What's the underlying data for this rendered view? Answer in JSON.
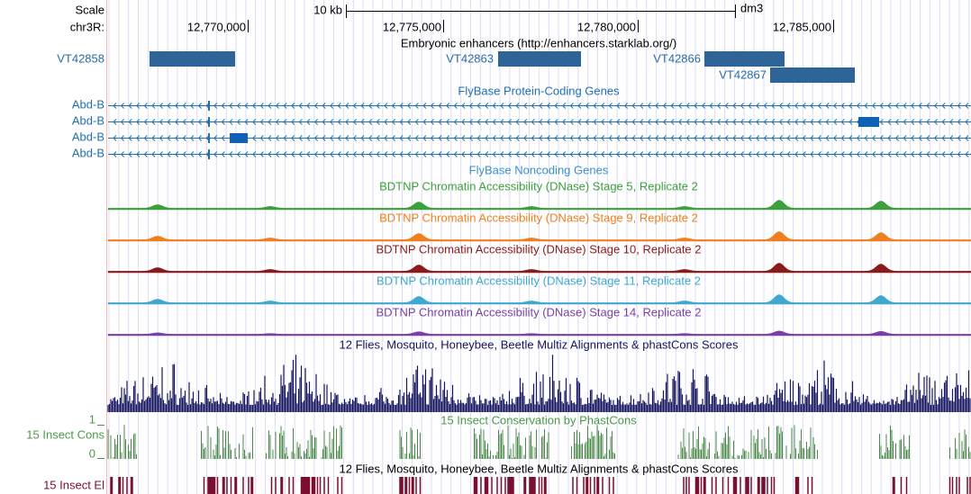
{
  "ruler": {
    "scale_label": "Scale",
    "scale_length": "10 kb",
    "assembly": "dm3",
    "chrom_label": "chr3R:",
    "ticks": [
      "12,770,000",
      "12,775,000",
      "12,780,000",
      "12,785,000"
    ]
  },
  "enhancers": {
    "title": "Embryonic enhancers (http://enhancers.starklab.org/)",
    "features": [
      "VT42858",
      "VT42863",
      "VT42866",
      "VT42867"
    ]
  },
  "protein_coding": {
    "title": "FlyBase Protein-Coding Genes",
    "genes": [
      "Abd-B",
      "Abd-B",
      "Abd-B",
      "Abd-B"
    ]
  },
  "noncoding": {
    "title": "FlyBase Noncoding Genes"
  },
  "dnase": {
    "tracks": [
      "BDTNP Chromatin Accessibility (DNase) Stage 5, Replicate 2",
      "BDTNP Chromatin Accessibility (DNase) Stage 9, Replicate 2",
      "BDTNP Chromatin Accessibility (DNase) Stage 10, Replicate 2",
      "BDTNP Chromatin Accessibility (DNase) Stage 11, Replicate 2",
      "BDTNP Chromatin Accessibility (DNase) Stage 14, Replicate 2"
    ]
  },
  "multiz": {
    "title": "12 Flies, Mosquito, Honeybee, Beetle Multiz Alignments & phastCons Scores"
  },
  "phastcons": {
    "title": "15 Insect Conservation by PhastCons",
    "label": "15 Insect Cons",
    "ymax": 1,
    "ymin": 0
  },
  "elements": {
    "title": "12 Flies, Mosquito, Honeybee, Beetle Multiz Alignments & phastCons Scores",
    "label": "15 Insect El"
  }
}
